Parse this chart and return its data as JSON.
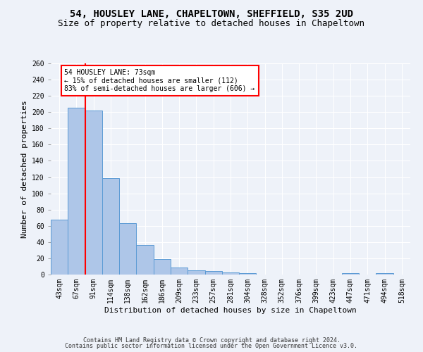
{
  "title1": "54, HOUSLEY LANE, CHAPELTOWN, SHEFFIELD, S35 2UD",
  "title2": "Size of property relative to detached houses in Chapeltown",
  "xlabel": "Distribution of detached houses by size in Chapeltown",
  "ylabel": "Number of detached properties",
  "categories": [
    "43sqm",
    "67sqm",
    "91sqm",
    "114sqm",
    "138sqm",
    "162sqm",
    "186sqm",
    "209sqm",
    "233sqm",
    "257sqm",
    "281sqm",
    "304sqm",
    "328sqm",
    "352sqm",
    "376sqm",
    "399sqm",
    "423sqm",
    "447sqm",
    "471sqm",
    "494sqm",
    "518sqm"
  ],
  "values": [
    68,
    205,
    202,
    119,
    63,
    36,
    19,
    9,
    5,
    4,
    3,
    2,
    0,
    0,
    0,
    0,
    0,
    2,
    0,
    2,
    0
  ],
  "bar_color": "#aec6e8",
  "bar_edge_color": "#5b9bd5",
  "marker_label": "54 HOUSLEY LANE: 73sqm",
  "marker_note1": "← 15% of detached houses are smaller (112)",
  "marker_note2": "83% of semi-detached houses are larger (606) →",
  "marker_color": "red",
  "ylim": [
    0,
    260
  ],
  "yticks": [
    0,
    20,
    40,
    60,
    80,
    100,
    120,
    140,
    160,
    180,
    200,
    220,
    240,
    260
  ],
  "footer1": "Contains HM Land Registry data © Crown copyright and database right 2024.",
  "footer2": "Contains public sector information licensed under the Open Government Licence v3.0.",
  "background_color": "#eef2f9",
  "grid_color": "#ffffff",
  "title_fontsize": 10,
  "subtitle_fontsize": 9,
  "axis_label_fontsize": 8,
  "tick_fontsize": 7
}
